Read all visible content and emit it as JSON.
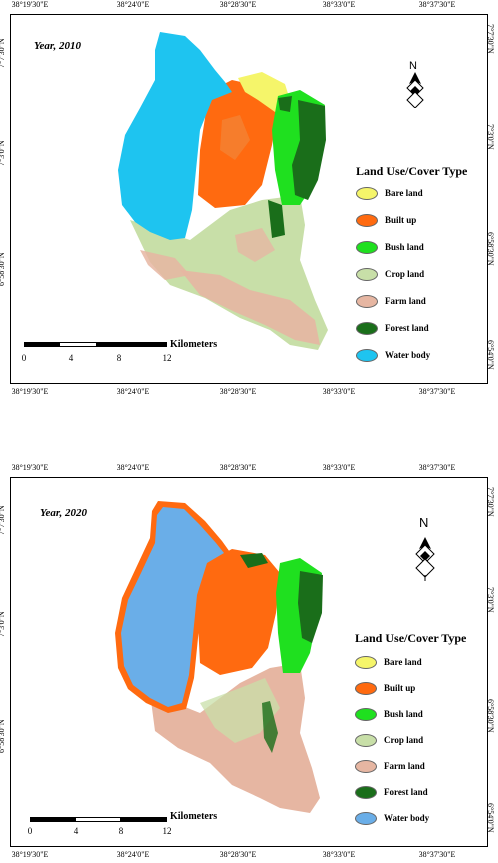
{
  "colors": {
    "bare_land": "#f5f56a",
    "built_up": "#ff6a10",
    "bush_land": "#1fe01f",
    "crop_land": "#c8dfa8",
    "farm_land": "#e6b6a2",
    "forest_land": "#1a6e1a",
    "water_body_2010": "#1ec4f0",
    "water_body_2020": "#6aaee8"
  },
  "legend": {
    "title": "Land Use/Cover Type",
    "items": [
      "Bare land",
      "Built up",
      "Bush land",
      "Crop land",
      "Farm land",
      "Forest land",
      "Water body"
    ]
  },
  "scale": {
    "ticks": [
      "0",
      "4",
      "8",
      "12"
    ],
    "unit": "Kilometers"
  },
  "longitudes": [
    "38°19'30\"E",
    "38°24'0\"E",
    "38°28'30\"E",
    "38°33'0\"E",
    "38°37'30\"E"
  ],
  "latitudes": [
    "7°7'30\"N",
    "7°3'0\"N",
    "6°58'30\"N",
    "6°54'0\"N"
  ],
  "north_label": "N",
  "panels": [
    {
      "year": "Year, 2010"
    },
    {
      "year": "Year, 2020"
    }
  ]
}
